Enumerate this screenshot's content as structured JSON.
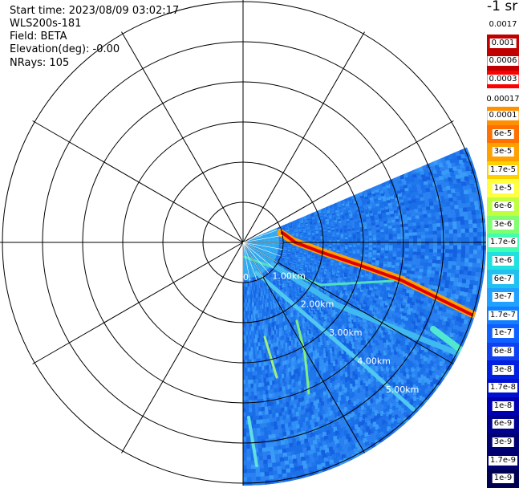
{
  "info": {
    "start_time": "Start time: 2023/08/09 03:02:17",
    "instrument": "WLS200s-181",
    "field": "Field: BETA",
    "elevation": "Elevation(deg): -0.00",
    "nrays": "NRays: 105"
  },
  "colorbar": {
    "unit": "-1 sr",
    "labels": [
      "0.0017",
      "0.001",
      "0.0006",
      "0.0003",
      "0.00017",
      "0.0001",
      "6e-5",
      "3e-5",
      "1.7e-5",
      "1e-5",
      "6e-6",
      "3e-6",
      "1.7e-6",
      "1e-6",
      "6e-7",
      "3e-7",
      "1.7e-7",
      "1e-7",
      "6e-8",
      "3e-8",
      "1.7e-8",
      "1e-8",
      "6e-9",
      "3e-9",
      "1.7e-9",
      "1e-9"
    ],
    "colors": [
      "#ffffff",
      "#c00000",
      "#c00000",
      "#ff0000",
      "#ffffff",
      "#ff9000",
      "#ff7000",
      "#ffa000",
      "#ffd000",
      "#ffff40",
      "#c0ff40",
      "#80ff70",
      "#40ffb0",
      "#20e0e0",
      "#20c0f0",
      "#20a0ff",
      "#1080ff",
      "#1060ff",
      "#1040f0",
      "#0020e0",
      "#0010d0",
      "#0000b0",
      "#000090",
      "#000070",
      "#000070",
      "#000050"
    ]
  },
  "range_rings": [
    "1.00km",
    "2.00km",
    "3.00km",
    "4.00km",
    "5.00km"
  ],
  "origin_label": "0."
}
